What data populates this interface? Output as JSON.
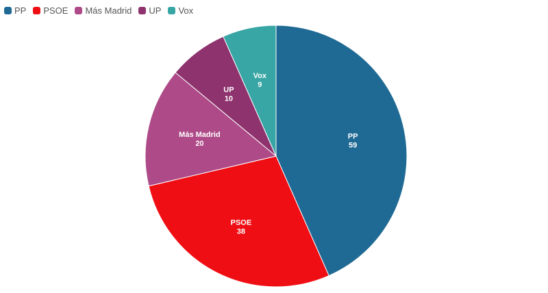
{
  "chart_data": {
    "type": "pie",
    "title": "",
    "legend_position": "top-left",
    "series": [
      {
        "name": "PP",
        "value": 59,
        "color": "#1f6a94"
      },
      {
        "name": "PSOE",
        "value": 38,
        "color": "#ee0e14"
      },
      {
        "name": "Más Madrid",
        "value": 20,
        "color": "#ae4a88"
      },
      {
        "name": "UP",
        "value": 10,
        "color": "#8e336e"
      },
      {
        "name": "Vox",
        "value": 9,
        "color": "#38a6a4"
      }
    ]
  }
}
